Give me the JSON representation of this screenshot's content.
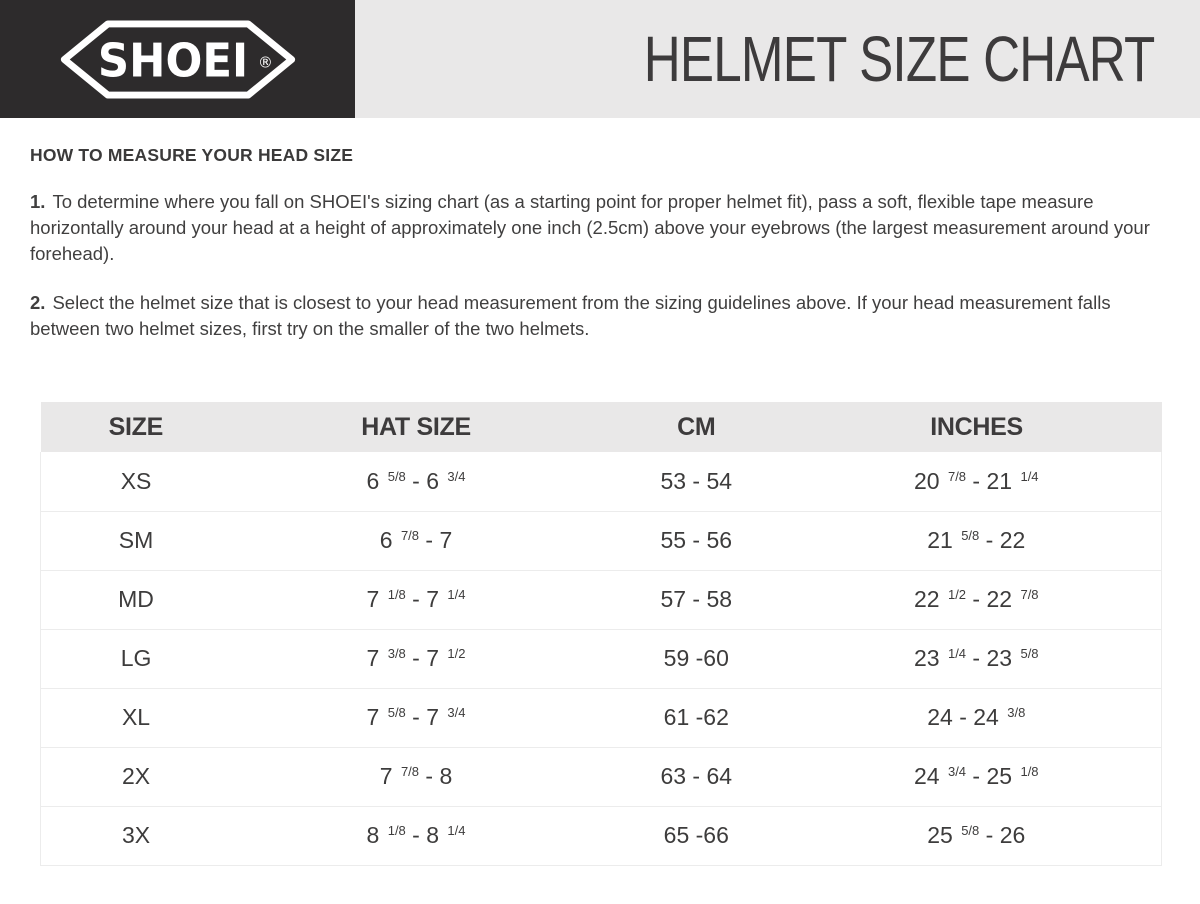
{
  "header": {
    "logo_text": "SHOEI",
    "registered_mark": "®",
    "title": "HELMET SIZE CHART",
    "colors": {
      "logo_box_bg": "#2d2b2c",
      "title_band_bg": "#e9e8e8",
      "title_text": "#3d3b3c",
      "logo_text_color": "#ffffff"
    }
  },
  "instructions": {
    "heading": "HOW TO MEASURE YOUR HEAD SIZE",
    "steps": [
      {
        "number": "1.",
        "text": "To determine where you fall on SHOEI's sizing chart (as a starting point for proper helmet fit), pass a soft, flexible tape measure horizontally around your head at a height of approximately one inch (2.5cm) above your eyebrows (the largest measurement around your forehead)."
      },
      {
        "number": "2.",
        "text": "Select the helmet size that is closest to your head measurement from the sizing guidelines above. If your head measurement falls between two helmet sizes, first try on the smaller of the two helmets."
      }
    ]
  },
  "size_table": {
    "columns": [
      "SIZE",
      "HAT SIZE",
      "CM",
      "INCHES"
    ],
    "rows": [
      {
        "size": "XS",
        "hat_size": "6 {5/8} - 6 {3/4}",
        "cm": "53 - 54",
        "inches": "20 {7/8} - 21 {1/4}"
      },
      {
        "size": "SM",
        "hat_size": "6 {7/8} - 7",
        "cm": "55 - 56",
        "inches": "21 {5/8} - 22"
      },
      {
        "size": "MD",
        "hat_size": "7 {1/8} - 7 {1/4}",
        "cm": "57 - 58",
        "inches": "22 {1/2} - 22 {7/8}"
      },
      {
        "size": "LG",
        "hat_size": "7 {3/8} - 7 {1/2}",
        "cm": "59 -60",
        "inches": "23 {1/4} - 23 {5/8}"
      },
      {
        "size": "XL",
        "hat_size": "7 {5/8} - 7 {3/4}",
        "cm": "61 -62",
        "inches": "24 - 24 {3/8}"
      },
      {
        "size": "2X",
        "hat_size": "7 {7/8} - 8",
        "cm": "63 - 64",
        "inches": "24 {3/4} - 25 {1/8}"
      },
      {
        "size": "3X",
        "hat_size": "8 {1/8} - 8 {1/4}",
        "cm": "65 -66",
        "inches": "25 {5/8} - 26"
      }
    ]
  }
}
